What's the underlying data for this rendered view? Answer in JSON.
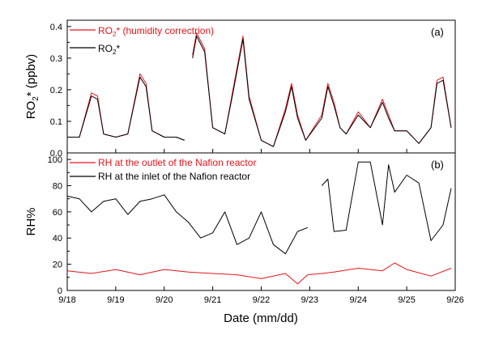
{
  "chart_data": [
    {
      "type": "line",
      "panel_label": "(a)",
      "ylabel": "RO2* (ppbv)",
      "ylabel_main": "RO",
      "ylabel_sub": "2",
      "ylabel_tail": "* (ppbv)",
      "ylim": [
        0.0,
        0.42
      ],
      "yticks": [
        0.0,
        0.1,
        0.2,
        0.3,
        0.4
      ],
      "ytick_labels": [
        "0.0",
        "0.1",
        "0.2",
        "0.3",
        "0.4"
      ],
      "legend_position": "top-left",
      "series": [
        {
          "name": "RO2* (humidity correctrion)",
          "legend_main": "RO",
          "legend_sub": "2",
          "legend_tail": "* (humidity correctrion)",
          "color": "#e8141a",
          "x": [
            "9/18 00:00",
            "9/18 06:00",
            "9/18 12:00",
            "9/18 15:00",
            "9/18 18:00",
            "9/19 00:00",
            "9/19 06:00",
            "9/19 12:00",
            "9/19 15:00",
            "9/19 18:00",
            "9/20 00:00",
            "9/20 06:00",
            "9/20 10:00",
            "9/20 12:00",
            "9/20 14:00",
            "9/20 16:00",
            "9/20 20:00",
            "9/21 00:00",
            "9/21 06:00",
            "9/21 10:00",
            "9/21 15:00",
            "9/21 18:00",
            "9/22 00:00",
            "9/22 06:00",
            "9/22 12:00",
            "9/22 15:00",
            "9/22 18:00",
            "9/22 22:00",
            "9/23 06:00",
            "9/23 09:00",
            "9/23 12:00",
            "9/23 15:00",
            "9/23 18:00",
            "9/24 00:00",
            "9/24 06:00",
            "9/24 12:00",
            "9/24 15:00",
            "9/24 18:00",
            "9/25 00:00",
            "9/25 06:00",
            "9/25 12:00",
            "9/25 15:00",
            "9/25 18:00",
            "9/25 22:00"
          ],
          "y": [
            0.05,
            0.05,
            0.19,
            0.18,
            0.06,
            0.05,
            0.06,
            0.25,
            0.22,
            0.07,
            0.05,
            0.05,
            0.04,
            null,
            0.31,
            0.38,
            0.33,
            0.08,
            0.06,
            0.2,
            0.37,
            0.18,
            0.04,
            0.02,
            0.14,
            0.22,
            0.12,
            0.04,
            0.12,
            0.22,
            0.16,
            0.08,
            0.06,
            0.13,
            0.08,
            0.17,
            0.12,
            0.07,
            0.07,
            0.03,
            0.08,
            0.23,
            0.24,
            0.08
          ]
        },
        {
          "name": "RO2*",
          "legend_main": "RO",
          "legend_sub": "2",
          "legend_tail": "*",
          "color": "#000000",
          "x": [
            "9/18 00:00",
            "9/18 06:00",
            "9/18 12:00",
            "9/18 15:00",
            "9/18 18:00",
            "9/19 00:00",
            "9/19 06:00",
            "9/19 12:00",
            "9/19 15:00",
            "9/19 18:00",
            "9/20 00:00",
            "9/20 06:00",
            "9/20 10:00",
            "9/20 12:00",
            "9/20 14:00",
            "9/20 16:00",
            "9/20 20:00",
            "9/21 00:00",
            "9/21 06:00",
            "9/21 10:00",
            "9/21 15:00",
            "9/21 18:00",
            "9/22 00:00",
            "9/22 06:00",
            "9/22 12:00",
            "9/22 15:00",
            "9/22 18:00",
            "9/22 22:00",
            "9/23 06:00",
            "9/23 09:00",
            "9/23 12:00",
            "9/23 15:00",
            "9/23 18:00",
            "9/24 00:00",
            "9/24 06:00",
            "9/24 12:00",
            "9/24 15:00",
            "9/24 18:00",
            "9/25 00:00",
            "9/25 06:00",
            "9/25 12:00",
            "9/25 15:00",
            "9/25 18:00",
            "9/25 22:00"
          ],
          "y": [
            0.05,
            0.05,
            0.18,
            0.17,
            0.06,
            0.05,
            0.06,
            0.24,
            0.21,
            0.07,
            0.05,
            0.05,
            0.04,
            null,
            0.3,
            0.37,
            0.32,
            0.08,
            0.06,
            0.19,
            0.36,
            0.17,
            0.04,
            0.02,
            0.13,
            0.21,
            0.11,
            0.04,
            0.11,
            0.21,
            0.15,
            0.08,
            0.06,
            0.12,
            0.08,
            0.16,
            0.11,
            0.07,
            0.07,
            0.03,
            0.08,
            0.22,
            0.23,
            0.08
          ]
        }
      ]
    },
    {
      "type": "line",
      "panel_label": "(b)",
      "ylabel": "RH%",
      "xlabel": "Date (mm/dd)",
      "ylim": [
        0,
        105
      ],
      "yticks": [
        0,
        20,
        40,
        60,
        80,
        100
      ],
      "ytick_labels": [
        "0",
        "20",
        "40",
        "60",
        "80",
        "100"
      ],
      "xlim": [
        0,
        8
      ],
      "xticks": [
        0,
        1,
        2,
        3,
        4,
        5,
        6,
        7,
        8
      ],
      "categories": [
        "9/18",
        "9/19",
        "9/20",
        "9/21",
        "9/22",
        "9/23",
        "9/24",
        "9/25",
        "9/26"
      ],
      "legend_position": "top-left",
      "series": [
        {
          "name": "RH at the outlet of the Nafion reactor",
          "color": "#e8141a",
          "x": [
            "9/18 00:00",
            "9/18 12:00",
            "9/19 00:00",
            "9/19 12:00",
            "9/20 00:00",
            "9/20 12:00",
            "9/21 00:00",
            "9/21 12:00",
            "9/22 00:00",
            "9/22 12:00",
            "9/22 18:00",
            "9/22 23:00",
            "9/23 06:00",
            "9/23 12:00",
            "9/24 00:00",
            "9/24 12:00",
            "9/24 18:00",
            "9/25 00:00",
            "9/25 12:00",
            "9/25 22:00"
          ],
          "y": [
            15,
            13,
            16,
            12,
            16,
            14,
            13,
            12,
            9,
            13,
            5,
            12,
            13,
            14,
            17,
            15,
            21,
            16,
            11,
            17
          ]
        },
        {
          "name": "RH at the inlet of the Nafion reactor",
          "color": "#000000",
          "x": [
            "9/18 00:00",
            "9/18 06:00",
            "9/18 12:00",
            "9/18 18:00",
            "9/19 00:00",
            "9/19 06:00",
            "9/19 12:00",
            "9/19 18:00",
            "9/20 00:00",
            "9/20 06:00",
            "9/20 12:00",
            "9/20 18:00",
            "9/21 00:00",
            "9/21 06:00",
            "9/21 12:00",
            "9/21 18:00",
            "9/22 00:00",
            "9/22 06:00",
            "9/22 12:00",
            "9/22 18:00",
            "9/22 23:00",
            "9/23 02:00",
            "9/23 06:00",
            "9/23 09:00",
            "9/23 12:00",
            "9/23 18:00",
            "9/24 00:00",
            "9/24 06:00",
            "9/24 12:00",
            "9/24 15:00",
            "9/24 18:00",
            "9/25 00:00",
            "9/25 06:00",
            "9/25 09:00",
            "9/25 12:00",
            "9/25 18:00",
            "9/25 22:00"
          ],
          "y": [
            72,
            70,
            60,
            68,
            70,
            58,
            68,
            70,
            73,
            60,
            52,
            40,
            44,
            60,
            35,
            40,
            60,
            35,
            28,
            45,
            48,
            null,
            80,
            85,
            45,
            46,
            98,
            98,
            50,
            96,
            75,
            88,
            82,
            60,
            38,
            50,
            78
          ]
        }
      ]
    }
  ]
}
